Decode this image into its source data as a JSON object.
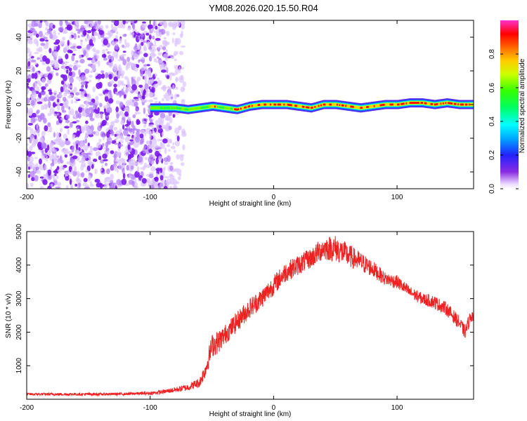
{
  "title": "YM08.2026.020.15.50.R04",
  "chart_data": [
    {
      "type": "heatmap",
      "name": "spectrogram",
      "xlabel": "Height of straight line (km)",
      "ylabel": "Frequency (Hz)",
      "xlim": [
        -200,
        162
      ],
      "ylim": [
        -50,
        50
      ],
      "xticks": [
        -200,
        -100,
        0,
        100
      ],
      "yticks": [
        -40,
        -20,
        0,
        20,
        40
      ],
      "noise_region_km": [
        -200,
        -72
      ],
      "signal_start_km": -100,
      "signal_ridge": {
        "x": [
          -100,
          -80,
          -70,
          -60,
          -50,
          -40,
          -30,
          -20,
          -10,
          0,
          10,
          20,
          30,
          40,
          50,
          60,
          70,
          80,
          90,
          100,
          110,
          120,
          130,
          140,
          150,
          160
        ],
        "freq": [
          -2,
          -2,
          -3,
          -2,
          -1,
          -2,
          -3,
          -1,
          0,
          0,
          0,
          -1,
          -2,
          0,
          0,
          -1,
          -2,
          -1,
          0,
          0,
          1,
          1,
          0,
          1,
          0,
          0
        ],
        "amplitude": [
          0.55,
          0.7,
          0.85,
          0.8,
          0.9,
          0.85,
          0.9,
          0.9,
          0.95,
          1.0,
          0.95,
          0.9,
          0.9,
          1.0,
          1.0,
          0.95,
          0.9,
          0.95,
          0.95,
          0.95,
          0.9,
          0.95,
          0.95,
          0.9,
          0.95,
          1.0
        ]
      },
      "colorbar": {
        "label": "Normalized spectral amplitude",
        "range": [
          0.0,
          1.0
        ],
        "ticks": [
          0.0,
          0.2,
          0.4,
          0.6,
          0.8
        ],
        "tick_labels": [
          "0.0",
          "0.2",
          "0.4",
          "0.6",
          "0.8"
        ]
      }
    },
    {
      "type": "line",
      "name": "snr",
      "xlabel": "Height of straight line (km)",
      "ylabel": "SNR (10 * v/v)",
      "xlim": [
        -200,
        162
      ],
      "ylim": [
        0,
        5000
      ],
      "xticks": [
        -200,
        -100,
        0,
        100
      ],
      "yticks": [
        1000,
        2000,
        3000,
        4000,
        5000
      ],
      "color": "#ee2222",
      "series": [
        {
          "name": "SNR",
          "x": [
            -200,
            -180,
            -160,
            -140,
            -120,
            -100,
            -90,
            -80,
            -70,
            -60,
            -55,
            -50,
            -45,
            -40,
            -30,
            -20,
            -10,
            0,
            10,
            20,
            30,
            40,
            50,
            60,
            70,
            80,
            90,
            100,
            110,
            120,
            130,
            140,
            150,
            155,
            160
          ],
          "values": [
            150,
            150,
            150,
            150,
            160,
            180,
            220,
            280,
            350,
            500,
            900,
            1600,
            1700,
            1900,
            2300,
            2700,
            3000,
            3400,
            3800,
            4000,
            4200,
            4500,
            4500,
            4300,
            4100,
            3900,
            3600,
            3500,
            3200,
            3000,
            2900,
            2700,
            2300,
            2000,
            2500
          ],
          "noise_amplitude": [
            40,
            40,
            40,
            40,
            40,
            50,
            60,
            80,
            100,
            150,
            250,
            350,
            350,
            300,
            300,
            300,
            300,
            300,
            300,
            300,
            300,
            350,
            400,
            350,
            300,
            250,
            200,
            200,
            180,
            180,
            200,
            200,
            200,
            200,
            200
          ]
        }
      ]
    }
  ]
}
